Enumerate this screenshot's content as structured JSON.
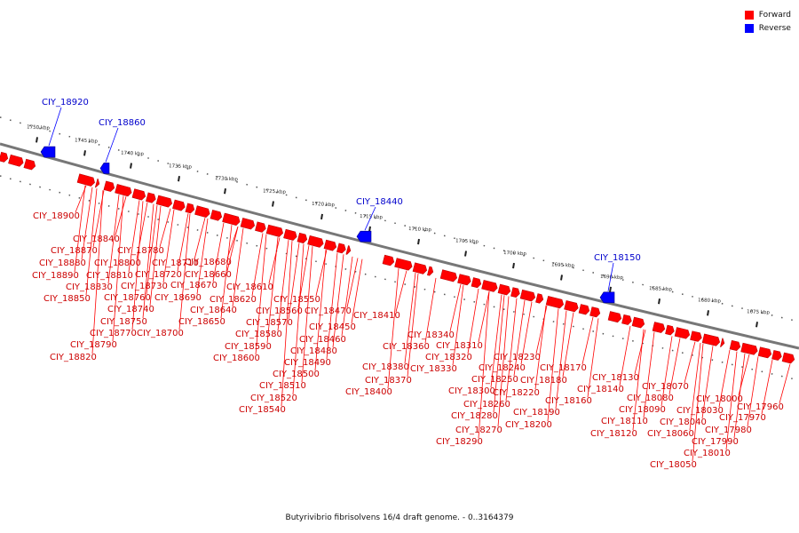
{
  "legend": [
    {
      "label": "Forward",
      "color": "#ff0000"
    },
    {
      "label": "Reverse",
      "color": "#0000ff"
    }
  ],
  "caption": "Butyrivibrio fibrisolvens 16/4 draft genome. - 0..3164379",
  "strand_colors": {
    "forward": "#ff0000",
    "reverse": "#0000ff",
    "backbone": "#777777"
  },
  "ruler_ticks": [
    "1750 kbp",
    "1745 kbp",
    "1740 kbp",
    "1735 kbp",
    "1730 kbp",
    "1725 kbp",
    "1720 kbp",
    "1715 kbp",
    "1710 kbp",
    "1705 kbp",
    "1700 kbp",
    "1695 kbp",
    "1690 kbp",
    "1685 kbp",
    "1680 kbp",
    "1675 kbp"
  ],
  "reverse_genes": [
    "CIY_18920",
    "CIY_18860",
    "CIY_18440",
    "CIY_18150"
  ],
  "forward_genes": [
    "CIY_18900",
    "CIY_18840",
    "CIY_18870",
    "CIY_18880",
    "CIY_18890",
    "CIY_18850",
    "CIY_18830",
    "CIY_18820",
    "CIY_18790",
    "CIY_18770",
    "CIY_18810",
    "CIY_18800",
    "CIY_18780",
    "CIY_18760",
    "CIY_18750",
    "CIY_18740",
    "CIY_18730",
    "CIY_18720",
    "CIY_18710",
    "CIY_18700",
    "CIY_18690",
    "CIY_18680",
    "CIY_18670",
    "CIY_18660",
    "CIY_18650",
    "CIY_18640",
    "CIY_18620",
    "CIY_18610",
    "CIY_18600",
    "CIY_18590",
    "CIY_18580",
    "CIY_18570",
    "CIY_18560",
    "CIY_18550",
    "CIY_18540",
    "CIY_18520",
    "CIY_18510",
    "CIY_18500",
    "CIY_18490",
    "CIY_18480",
    "CIY_18470",
    "CIY_18460",
    "CIY_18450",
    "CIY_18410",
    "CIY_18400",
    "CIY_18380",
    "CIY_18370",
    "CIY_18360",
    "CIY_18340",
    "CIY_18330",
    "CIY_18320",
    "CIY_18310",
    "CIY_18300",
    "CIY_18290",
    "CIY_18280",
    "CIY_18270",
    "CIY_18260",
    "CIY_18250",
    "CIY_18240",
    "CIY_18230",
    "CIY_18220",
    "CIY_18200",
    "CIY_18190",
    "CIY_18180",
    "CIY_18170",
    "CIY_18160",
    "CIY_18140",
    "CIY_18130",
    "CIY_18120",
    "CIY_18110",
    "CIY_18090",
    "CIY_18080",
    "CIY_18070",
    "CIY_18060",
    "CIY_18050",
    "CIY_18040",
    "CIY_18030",
    "CIY_18010",
    "CIY_18000",
    "CIY_17990",
    "CIY_17980",
    "CIY_17970",
    "CIY_17960"
  ]
}
